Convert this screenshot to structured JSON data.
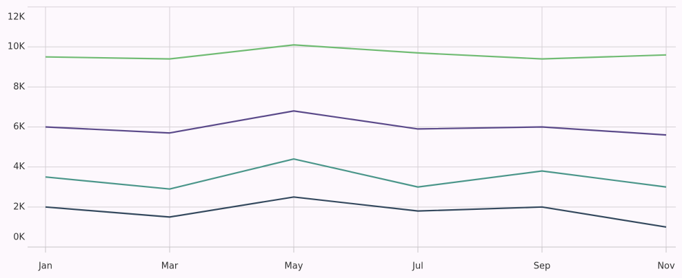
{
  "chart_data": {
    "type": "line",
    "categories": [
      "Jan",
      "Mar",
      "May",
      "Jul",
      "Sep",
      "Nov"
    ],
    "series": [
      {
        "color": "#70bb73",
        "values": [
          9500,
          9400,
          10100,
          9700,
          9400,
          9600
        ]
      },
      {
        "color": "#5b4a8a",
        "values": [
          6000,
          5700,
          6800,
          5900,
          6000,
          5600
        ]
      },
      {
        "color": "#4b968a",
        "values": [
          3500,
          2900,
          4400,
          3000,
          3800,
          3000
        ]
      },
      {
        "color": "#34495e",
        "values": [
          2000,
          1500,
          2500,
          1800,
          2000,
          1000
        ]
      }
    ],
    "ylim": [
      0,
      12000
    ],
    "yticks": [
      {
        "value": 0,
        "label": "0K"
      },
      {
        "value": 2000,
        "label": "2K"
      },
      {
        "value": 4000,
        "label": "4K"
      },
      {
        "value": 6000,
        "label": "6K"
      },
      {
        "value": 8000,
        "label": "8K"
      },
      {
        "value": 10000,
        "label": "10K"
      },
      {
        "value": 12000,
        "label": "12K"
      }
    ],
    "grid": true
  }
}
